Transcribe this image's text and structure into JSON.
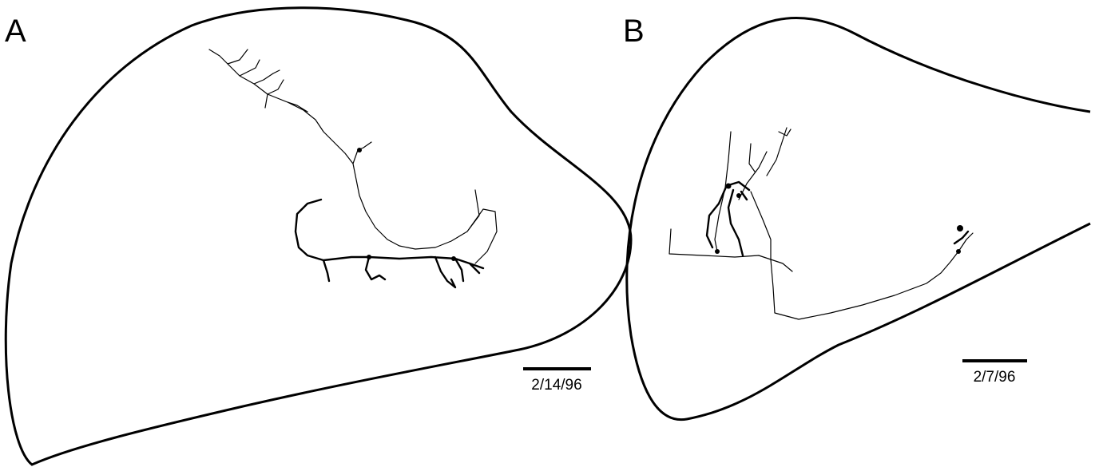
{
  "panels": [
    {
      "label": "A",
      "scale_bar_label": "2/14/96"
    },
    {
      "label": "B",
      "scale_bar_label": "2/7/96"
    }
  ]
}
